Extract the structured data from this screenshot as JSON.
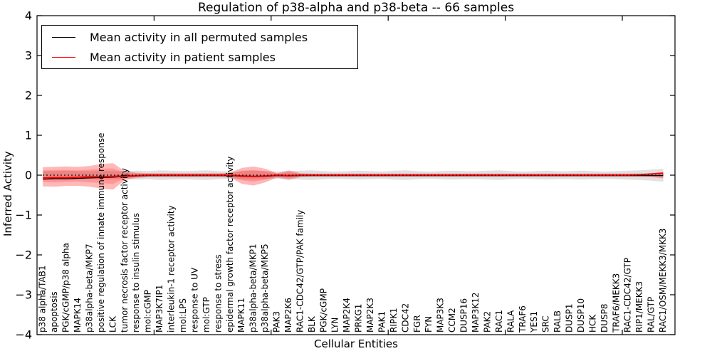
{
  "title": "Regulation of p38-alpha and p38-beta -- 66 samples",
  "legend": {
    "items": [
      {
        "label": "Mean activity in all permuted samples",
        "color": "#000000"
      },
      {
        "label": "Mean activity in patient samples",
        "color": "#ff0000"
      }
    ]
  },
  "chart_data": {
    "type": "line",
    "title": "Regulation of p38-alpha and p38-beta -- 66 samples",
    "xlabel": "Cellular Entities",
    "ylabel": "Inferred Activity",
    "ylim": [
      -4,
      4
    ],
    "ytick_values": [
      4,
      3,
      2,
      1,
      0,
      -1,
      -2,
      -3,
      -4
    ],
    "ytick_labels": [
      "4",
      "3",
      "2",
      "1",
      "0",
      "−1",
      "−2",
      "−3",
      "−4"
    ],
    "xtick_major_values": [
      10,
      20,
      30,
      40,
      50
    ],
    "grid": false,
    "legend_position": "upper left",
    "baseline": {
      "value": 0,
      "style": "dotted",
      "color": "#000000"
    },
    "categories": [
      "p38 alpha/TAB1",
      "apoptosis",
      "PGK/cGMP/p38 alpha",
      "MAPK14",
      "p38alpha-beta/MKP7",
      "positive regulation of innate immune response",
      "LCK",
      "tumor necrosis factor receptor activity",
      "response to insulin stimulus",
      "mol:cGMP",
      "MAP3K7IP1",
      "interleukin-1 receptor activity",
      "mol:LPS",
      "response to UV",
      "mol:GTP",
      "response to stress",
      "epidermal growth factor receptor activity",
      "MAPK11",
      "p38alpha-beta/MKP1",
      "p38alpha-beta/MKP5",
      "PAK3",
      "MAP2K6",
      "RAC1-CDC42/GTP/PAK family",
      "BLK",
      "PGK/cGMP",
      "LYN",
      "MAP2K4",
      "PRKG1",
      "MAP2K3",
      "PAK1",
      "RIPK1",
      "CDC42",
      "FGR",
      "FYN",
      "MAP3K3",
      "CCM2",
      "DUSP16",
      "MAP3K12",
      "PAK2",
      "RAC1",
      "RALA",
      "TRAF6",
      "YES1",
      "SRC",
      "RALB",
      "DUSP1",
      "DUSP10",
      "HCK",
      "DUSP8",
      "TRAF6/MEKK3",
      "RAC1-CDC42/GTP",
      "RIP1/MEKK3",
      "RAL/GTP",
      "RAC1/OSM/MEKK3/MKK3"
    ],
    "series": [
      {
        "name": "Mean activity in all permuted samples",
        "color": "#000000",
        "style": "solid",
        "values": [
          -0.1,
          -0.09,
          -0.09,
          -0.08,
          -0.07,
          -0.06,
          -0.05,
          -0.03,
          -0.02,
          -0.01,
          -0.01,
          -0.01,
          -0.01,
          -0.01,
          -0.01,
          -0.01,
          -0.01,
          -0.03,
          -0.04,
          -0.03,
          -0.01,
          -0.02,
          -0.01,
          -0.01,
          -0.01,
          -0.01,
          -0.01,
          -0.01,
          -0.01,
          -0.01,
          -0.01,
          -0.01,
          -0.01,
          -0.01,
          -0.01,
          -0.01,
          -0.01,
          -0.01,
          -0.01,
          -0.01,
          -0.01,
          -0.01,
          -0.01,
          -0.01,
          -0.01,
          -0.01,
          -0.01,
          -0.01,
          -0.01,
          -0.01,
          -0.01,
          -0.01,
          -0.01,
          -0.01
        ]
      },
      {
        "name": "Mean activity in patient samples",
        "color": "#ff0000",
        "style": "solid",
        "values": [
          -0.07,
          -0.06,
          -0.06,
          -0.05,
          -0.04,
          -0.04,
          -0.03,
          -0.02,
          -0.01,
          0.0,
          0.0,
          0.0,
          0.0,
          0.0,
          0.0,
          0.0,
          0.0,
          -0.02,
          -0.03,
          -0.02,
          0.0,
          -0.01,
          0.0,
          0.0,
          0.0,
          0.0,
          0.0,
          0.0,
          0.0,
          0.0,
          0.0,
          0.0,
          0.0,
          0.0,
          0.0,
          0.0,
          0.0,
          0.0,
          0.0,
          0.0,
          0.0,
          0.0,
          0.0,
          0.0,
          0.0,
          0.0,
          0.0,
          0.0,
          0.0,
          0.0,
          0.0,
          0.01,
          0.03,
          0.05
        ]
      }
    ],
    "bands": [
      {
        "name": "permuted-samples-range",
        "color": "rgba(0,0,0,0.12)",
        "upper": [
          0.1,
          0.1,
          0.11,
          0.1,
          0.1,
          0.11,
          0.1,
          0.1,
          0.11,
          0.1,
          0.12,
          0.11,
          0.1,
          0.11,
          0.12,
          0.1,
          0.09,
          0.1,
          0.11,
          0.1,
          0.09,
          0.1,
          0.11,
          0.12,
          0.1,
          0.09,
          0.1,
          0.11,
          0.1,
          0.09,
          0.11,
          0.12,
          0.1,
          0.09,
          0.1,
          0.11,
          0.1,
          0.1,
          0.11,
          0.12,
          0.1,
          0.09,
          0.1,
          0.11,
          0.1,
          0.1,
          0.11,
          0.1,
          0.09,
          0.1,
          0.11,
          0.12,
          0.14,
          0.16
        ],
        "lower": [
          -0.1,
          -0.1,
          -0.11,
          -0.1,
          -0.1,
          -0.11,
          -0.1,
          -0.1,
          -0.11,
          -0.1,
          -0.12,
          -0.11,
          -0.1,
          -0.11,
          -0.12,
          -0.1,
          -0.09,
          -0.1,
          -0.11,
          -0.1,
          -0.09,
          -0.1,
          -0.11,
          -0.12,
          -0.1,
          -0.09,
          -0.1,
          -0.11,
          -0.1,
          -0.09,
          -0.11,
          -0.12,
          -0.1,
          -0.09,
          -0.1,
          -0.11,
          -0.1,
          -0.1,
          -0.11,
          -0.12,
          -0.1,
          -0.09,
          -0.1,
          -0.11,
          -0.1,
          -0.1,
          -0.11,
          -0.1,
          -0.09,
          -0.1,
          -0.11,
          -0.12,
          -0.14,
          -0.16
        ]
      },
      {
        "name": "patient-samples-range-outer",
        "color": "rgba(255,0,0,0.28)",
        "upper": [
          0.2,
          0.21,
          0.22,
          0.21,
          0.23,
          0.28,
          0.3,
          0.1,
          0.06,
          0.05,
          0.05,
          0.05,
          0.05,
          0.05,
          0.05,
          0.05,
          0.06,
          0.18,
          0.22,
          0.16,
          0.05,
          0.12,
          0.05,
          0.04,
          0.04,
          0.04,
          0.04,
          0.04,
          0.04,
          0.04,
          0.04,
          0.04,
          0.04,
          0.04,
          0.04,
          0.04,
          0.04,
          0.04,
          0.04,
          0.04,
          0.04,
          0.04,
          0.04,
          0.04,
          0.04,
          0.04,
          0.04,
          0.04,
          0.04,
          0.04,
          0.04,
          0.04,
          0.05,
          0.08
        ],
        "lower": [
          -0.28,
          -0.29,
          -0.27,
          -0.27,
          -0.29,
          -0.34,
          -0.36,
          -0.12,
          -0.07,
          -0.05,
          -0.05,
          -0.05,
          -0.05,
          -0.05,
          -0.05,
          -0.05,
          -0.06,
          -0.22,
          -0.26,
          -0.18,
          -0.06,
          -0.12,
          -0.05,
          -0.04,
          -0.04,
          -0.04,
          -0.04,
          -0.04,
          -0.04,
          -0.04,
          -0.04,
          -0.04,
          -0.04,
          -0.04,
          -0.04,
          -0.04,
          -0.04,
          -0.04,
          -0.04,
          -0.04,
          -0.04,
          -0.04,
          -0.04,
          -0.04,
          -0.04,
          -0.04,
          -0.04,
          -0.04,
          -0.04,
          -0.04,
          -0.04,
          -0.04,
          -0.05,
          -0.08
        ]
      },
      {
        "name": "patient-samples-range-inner",
        "color": "rgba(255,0,0,0.18)",
        "upper": [
          0.12,
          0.13,
          0.13,
          0.12,
          0.14,
          0.16,
          0.17,
          0.06,
          0.04,
          0.03,
          0.03,
          0.03,
          0.03,
          0.03,
          0.03,
          0.03,
          0.04,
          0.11,
          0.13,
          0.1,
          0.03,
          0.07,
          0.03,
          0.02,
          0.02,
          0.02,
          0.02,
          0.02,
          0.02,
          0.02,
          0.02,
          0.02,
          0.02,
          0.02,
          0.02,
          0.02,
          0.02,
          0.02,
          0.02,
          0.02,
          0.02,
          0.02,
          0.02,
          0.02,
          0.02,
          0.02,
          0.02,
          0.02,
          0.02,
          0.02,
          0.02,
          0.02,
          0.03,
          0.05
        ],
        "lower": [
          -0.17,
          -0.18,
          -0.17,
          -0.16,
          -0.18,
          -0.2,
          -0.22,
          -0.08,
          -0.05,
          -0.03,
          -0.03,
          -0.03,
          -0.03,
          -0.03,
          -0.03,
          -0.03,
          -0.04,
          -0.13,
          -0.16,
          -0.11,
          -0.04,
          -0.07,
          -0.03,
          -0.02,
          -0.02,
          -0.02,
          -0.02,
          -0.02,
          -0.02,
          -0.02,
          -0.02,
          -0.02,
          -0.02,
          -0.02,
          -0.02,
          -0.02,
          -0.02,
          -0.02,
          -0.02,
          -0.02,
          -0.02,
          -0.02,
          -0.02,
          -0.02,
          -0.02,
          -0.02,
          -0.02,
          -0.02,
          -0.02,
          -0.02,
          -0.02,
          -0.02,
          -0.03,
          -0.05
        ]
      }
    ]
  }
}
